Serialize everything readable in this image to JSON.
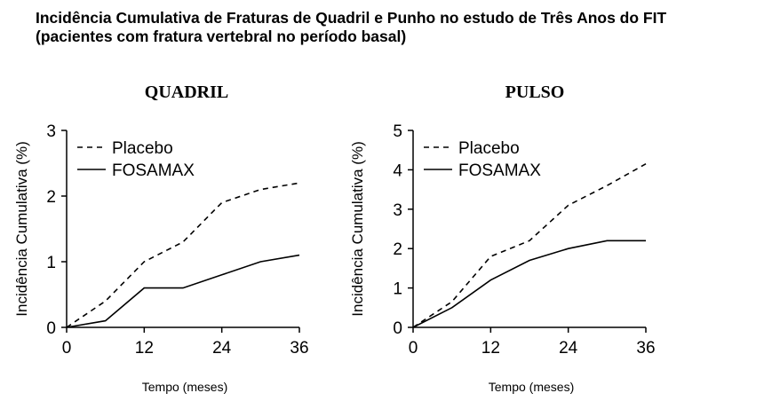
{
  "header": {
    "title_line1": "Incidência Cumulativa de Fraturas de Quadril e Punho no estudo de Três Anos do FIT",
    "title_line2": "(pacientes com fratura vertebral no período basal)"
  },
  "chart_data": [
    {
      "type": "line",
      "title": "QUADRIL",
      "xlabel": "Tempo (meses)",
      "ylabel": "Incidência Cumulativa (%)",
      "xlim": [
        0,
        36
      ],
      "ylim": [
        0,
        3
      ],
      "xticks": [
        0,
        12,
        24,
        36
      ],
      "yticks": [
        0,
        1,
        2,
        3
      ],
      "legend_position": "top-left",
      "grid": false,
      "series": [
        {
          "name": "Placebo",
          "style": "dashed",
          "x": [
            0,
            6,
            12,
            18,
            24,
            30,
            36
          ],
          "values": [
            0,
            0.4,
            1.0,
            1.3,
            1.9,
            2.1,
            2.2
          ]
        },
        {
          "name": "FOSAMAX",
          "style": "solid",
          "x": [
            0,
            6,
            12,
            18,
            24,
            30,
            36
          ],
          "values": [
            0,
            0.1,
            0.6,
            0.6,
            0.8,
            1.0,
            1.1
          ]
        }
      ]
    },
    {
      "type": "line",
      "title": "PULSO",
      "xlabel": "Tempo (meses)",
      "ylabel": "Incidência Cumulativa (%)",
      "xlim": [
        0,
        36
      ],
      "ylim": [
        0,
        5
      ],
      "xticks": [
        0,
        12,
        24,
        36
      ],
      "yticks": [
        0,
        1,
        2,
        3,
        4,
        5
      ],
      "legend_position": "top-left",
      "grid": false,
      "series": [
        {
          "name": "Placebo",
          "style": "dashed",
          "x": [
            0,
            6,
            12,
            18,
            24,
            30,
            36
          ],
          "values": [
            0,
            0.65,
            1.8,
            2.2,
            3.1,
            3.6,
            4.15
          ]
        },
        {
          "name": "FOSAMAX",
          "style": "solid",
          "x": [
            0,
            6,
            12,
            18,
            24,
            30,
            36
          ],
          "values": [
            0,
            0.5,
            1.2,
            1.7,
            2.0,
            2.2,
            2.2
          ]
        }
      ]
    }
  ]
}
